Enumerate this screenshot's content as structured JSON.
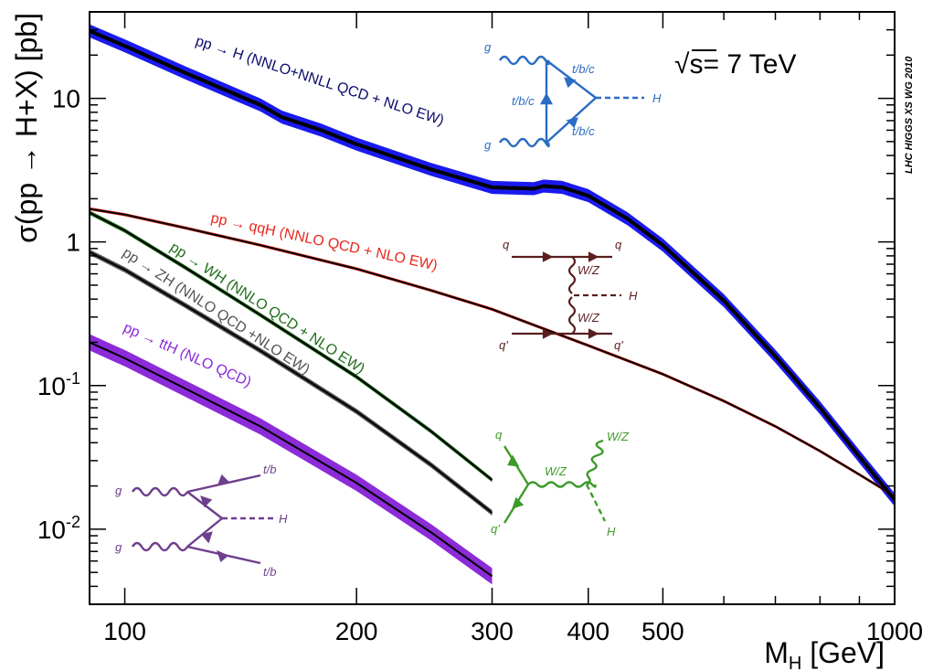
{
  "chart_data": {
    "type": "line",
    "title": "",
    "xlabel": "M",
    "xlabel_sub": "H",
    "xlabel_unit": " [GeV]",
    "ylabel": "σ(pp → H+X) [pb]",
    "x_scale": "log",
    "y_scale": "log",
    "xlim": [
      90,
      1000
    ],
    "ylim": [
      0.003,
      40
    ],
    "grid": false,
    "x_ticks": [
      100,
      200,
      300,
      400,
      500,
      1000
    ],
    "x_tick_labels": [
      "100",
      "200",
      "300",
      "400",
      "500",
      "1000"
    ],
    "y_ticks": [
      0.01,
      0.1,
      1,
      10
    ],
    "y_tick_labels": [
      {
        "base": "10",
        "exp": "-2"
      },
      {
        "base": "10",
        "exp": "-1"
      },
      {
        "base": "1",
        "exp": ""
      },
      {
        "base": "10",
        "exp": ""
      }
    ],
    "energy_label": "√s= 7 TeV",
    "collaboration_tag": "LHC HIGGS XS WG 2010",
    "series": [
      {
        "name": "pp → H (NNLO+NNLL QCD + NLO EW)",
        "color": "#1a1aee",
        "label_color": "#0b0b6e",
        "x": [
          90,
          100,
          120,
          150,
          160,
          180,
          200,
          250,
          300,
          340,
          350,
          370,
          400,
          450,
          500,
          600,
          700,
          800,
          900,
          1000
        ],
        "y": [
          29.5,
          23.2,
          15.0,
          9.0,
          7.4,
          6.0,
          4.8,
          3.2,
          2.4,
          2.35,
          2.45,
          2.4,
          2.1,
          1.45,
          0.95,
          0.39,
          0.16,
          0.07,
          0.032,
          0.016
        ],
        "band": 0.11
      },
      {
        "name": "pp → qqH (NNLO QCD + NLO EW)",
        "color": "#e8281e",
        "label_color": "#e8281e",
        "x": [
          90,
          100,
          120,
          150,
          200,
          250,
          300,
          400,
          500,
          600,
          700,
          800,
          900,
          1000
        ],
        "y": [
          1.7,
          1.55,
          1.25,
          0.95,
          0.65,
          0.46,
          0.34,
          0.19,
          0.12,
          0.078,
          0.052,
          0.035,
          0.024,
          0.017
        ],
        "band": 0.025
      },
      {
        "name": "pp → WH (NNLO QCD + NLO EW)",
        "color": "#1f6e1a",
        "label_color": "#1f6e1a",
        "x": [
          90,
          100,
          120,
          150,
          200,
          250,
          300
        ],
        "y": [
          1.6,
          1.2,
          0.66,
          0.31,
          0.115,
          0.048,
          0.022
        ],
        "band": 0.035
      },
      {
        "name": "pp → ZH (NNLO QCD +NLO EW)",
        "color": "#555555",
        "label_color": "#555555",
        "x": [
          90,
          100,
          120,
          150,
          200,
          250,
          300
        ],
        "y": [
          0.85,
          0.64,
          0.36,
          0.175,
          0.066,
          0.028,
          0.013
        ],
        "band": 0.045
      },
      {
        "name": "pp → ttH (NLO QCD)",
        "color": "#8c2bd8",
        "label_color": "#8c2bd8",
        "x": [
          90,
          100,
          120,
          150,
          200,
          250,
          300
        ],
        "y": [
          0.2,
          0.155,
          0.095,
          0.052,
          0.021,
          0.0095,
          0.0047
        ],
        "band": 0.14
      }
    ],
    "diagrams": {
      "ggH": {
        "labels": [
          "g",
          "g",
          "t/b/c",
          "t/b/c",
          "t/b/c",
          "H"
        ],
        "color": "#2b6cc4"
      },
      "VBF": {
        "labels": [
          "q",
          "q",
          "W/Z",
          "H",
          "W/Z",
          "q'",
          "q'"
        ],
        "color": "#5a1e1e"
      },
      "VH": {
        "labels": [
          "q",
          "q'",
          "W/Z",
          "W/Z",
          "H"
        ],
        "color": "#3d9a2a"
      },
      "ttH": {
        "labels": [
          "g",
          "g",
          "t/b",
          "H",
          "t/b"
        ],
        "color": "#6e3f8c"
      }
    }
  }
}
